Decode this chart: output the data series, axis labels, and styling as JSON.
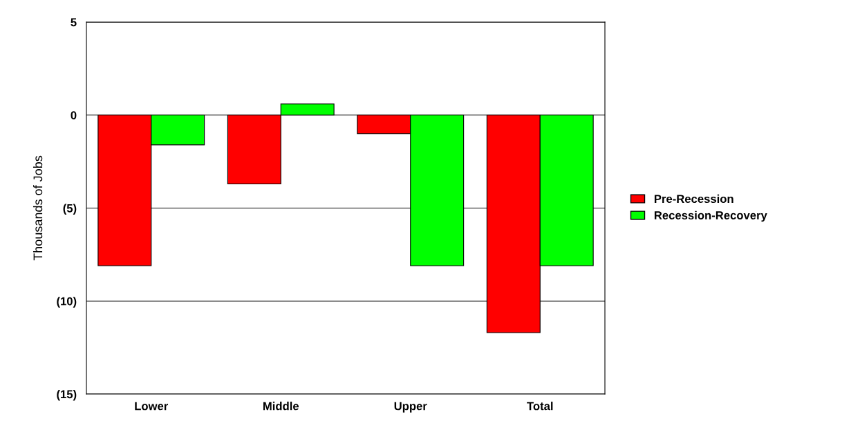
{
  "chart_data": {
    "type": "bar",
    "ylabel": "Thousands of Jobs",
    "categories": [
      "Lower",
      "Middle",
      "Upper",
      "Total"
    ],
    "series": [
      {
        "name": "Pre-Recession",
        "color": "#ff0000",
        "values": [
          -8.1,
          -3.7,
          -1.0,
          -11.7
        ]
      },
      {
        "name": "Recession-Recovery",
        "color": "#00ff00",
        "values": [
          -1.6,
          0.6,
          -8.1,
          -8.1
        ]
      }
    ],
    "ylim": [
      -15,
      5
    ],
    "yticks": [
      {
        "value": -15,
        "label": "(15)"
      },
      {
        "value": -10,
        "label": "(10)"
      },
      {
        "value": -5,
        "label": "(5)"
      },
      0,
      5
    ],
    "grid": "y",
    "legend": "right"
  }
}
